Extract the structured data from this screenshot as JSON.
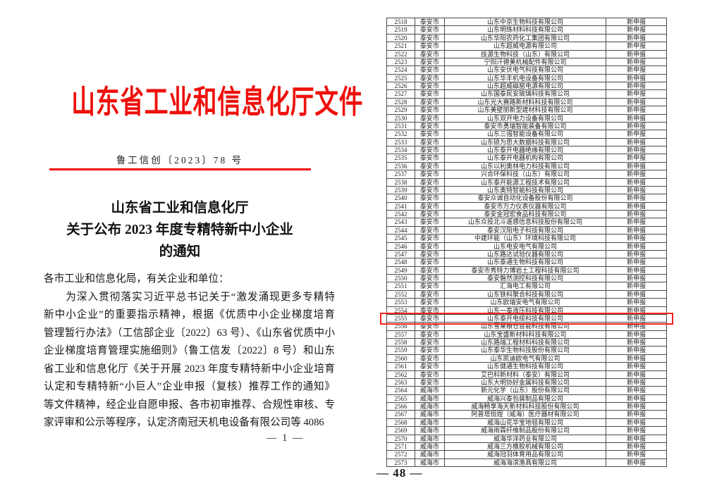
{
  "colors": {
    "red": "#ee100b",
    "highlight": "#f2231a",
    "grid": "#4a4a4a"
  },
  "notice": {
    "header_title": "山东省工业和信息化厅文件",
    "doc_number": "鲁工信创〔2023〕78 号",
    "title_lines": [
      "山东省工业和信息化厅",
      "关于公布 2023 年度专精特新中小企业",
      "的通知"
    ],
    "body_lines": [
      "各市工业和信息化局，有关企业和单位：",
      "　　为深入贯彻落实习近平总书记关于“激发涌现更多专精特",
      "新中小企业”的重要指示精神，根据《优质中小企业梯度培育",
      "管理暂行办法》（工信部企业〔2022〕63 号）、《山东省优质中小",
      "企业梯度培育管理实施细则》（鲁工信发〔2022〕8 号）和山东",
      "省工业和信息化厅《关于开展 2023 年度专精特新中小企业培育",
      "认定和专精特新“小巨人”企业申报（复核）推荐工作的通知》",
      "等文件精神，经企业自愿申报、各市初审推荐、合规性审核、专",
      "家评审和公示等程序，认定济南冠天机电设备有限公司等 4086"
    ],
    "page_number": "— 1 —"
  },
  "table": {
    "highlighted_no": "2555",
    "page_number": "— 48 —",
    "rows": [
      [
        "2518",
        "泰安市",
        "山东中京生物科技有限公司",
        "新申报"
      ],
      [
        "2519",
        "泰安市",
        "山东明珠材料科技有限公司",
        "新申报"
      ],
      [
        "2520",
        "泰安市",
        "山东华阳农药化工集团有限公司",
        "新申报"
      ],
      [
        "2521",
        "泰安市",
        "山东超威电源有限公司",
        "新申报"
      ],
      [
        "2522",
        "泰安市",
        "技源生物科技（山东）有限公司",
        "新申报"
      ],
      [
        "2523",
        "泰安市",
        "宁阳汗德美机械配件有限公司",
        "新申报"
      ],
      [
        "2524",
        "泰安市",
        "山东安伏电气科技有限公司",
        "新申报"
      ],
      [
        "2525",
        "泰安市",
        "山东华丰机电设备有限公司",
        "新申报"
      ],
      [
        "2526",
        "泰安市",
        "山东超威磁窑电源有限公司",
        "新申报"
      ],
      [
        "2527",
        "泰安市",
        "山东国泰民安玻璃科技有限公司",
        "新申报"
      ],
      [
        "2528",
        "泰安市",
        "山东光大赛路新材料科技有限公司",
        "新申报"
      ],
      [
        "2529",
        "泰安市",
        "山东美壁丽新型建材科技有限公司",
        "新申报"
      ],
      [
        "2530",
        "泰安市",
        "山东双开电力设备有限公司",
        "新申报"
      ],
      [
        "2531",
        "泰安市",
        "泰安市勇瑞智能装备有限公司",
        "新申报"
      ],
      [
        "2532",
        "泰安市",
        "山东三强智能设备有限公司",
        "新申报"
      ],
      [
        "2533",
        "泰安市",
        "山东硕为思大数据科技有限公司",
        "新申报"
      ],
      [
        "2534",
        "泰安市",
        "山东泰开电器绝缘有限公司",
        "新申报"
      ],
      [
        "2535",
        "泰安市",
        "山东泰开电器机构有限公司",
        "新申报"
      ],
      [
        "2536",
        "泰安市",
        "山东以利奥林电力科技有限公司",
        "新申报"
      ],
      [
        "2537",
        "泰安市",
        "兴合环保科技（山东）有限公司",
        "新申报"
      ],
      [
        "2538",
        "泰安市",
        "山东泰开能源工程技术有限公司",
        "新申报"
      ],
      [
        "2539",
        "泰安市",
        "山东奥特智能科技有限公司",
        "新申报"
      ],
      [
        "2540",
        "泰安市",
        "泰安众诚自动化设备股份有限公司",
        "新申报"
      ],
      [
        "2541",
        "泰安市",
        "泰安市万力仪表仪器有限公司",
        "新申报"
      ],
      [
        "2542",
        "泰安市",
        "泰安金冠宏食品科技有限公司",
        "新申报"
      ],
      [
        "2543",
        "泰安市",
        "山东众投北斗遥感信息科技股份有限公司",
        "新申报"
      ],
      [
        "2544",
        "泰安市",
        "泰安汉阳电子科技有限公司",
        "新申报"
      ],
      [
        "2545",
        "泰安市",
        "中建环能（山东）环境科技有限公司",
        "新申报"
      ],
      [
        "2546",
        "泰安市",
        "山东电安电气有限公司",
        "新申报"
      ],
      [
        "2547",
        "泰安市",
        "山东路达试验仪器有限公司",
        "新申报"
      ],
      [
        "2548",
        "泰安市",
        "山东泰通生物科技有限公司",
        "新申报"
      ],
      [
        "2549",
        "泰安市",
        "泰安市秀特力博岩土工程科技有限公司",
        "新申报"
      ],
      [
        "2550",
        "泰安市",
        "泰安磐然测控科技有限公司",
        "新申报"
      ],
      [
        "2551",
        "泰安市",
        "汇海电工有限公司",
        "新申报"
      ],
      [
        "2552",
        "泰安市",
        "山东铁科聚合科技有限公司",
        "新申报"
      ],
      [
        "2553",
        "泰安市",
        "山东欧瑞安电气有限公司",
        "新申报"
      ],
      [
        "2554",
        "泰安市",
        "山东一泰液压科技有限公司",
        "新申报"
      ],
      [
        "2555",
        "泰安市",
        "山东泰开电缆科技有限公司",
        "新申报"
      ],
      [
        "2556",
        "泰安市",
        "山东雪莱粮仓智能科技有限公司",
        "新申报"
      ],
      [
        "2557",
        "泰安市",
        "山东宝盛新材料科技有限公司",
        "新申报"
      ],
      [
        "2558",
        "泰安市",
        "山东路瑞工程材料科技有限公司",
        "新申报"
      ],
      [
        "2559",
        "泰安市",
        "山东泰华生物科技股份有限公司",
        "新申报"
      ],
      [
        "2560",
        "泰安市",
        "山东凯迪欧电气有限公司",
        "新申报"
      ],
      [
        "2561",
        "泰安市",
        "山东健通生物科技有限公司",
        "新申报"
      ],
      [
        "2562",
        "泰安市",
        "艾巴科新材料（泰安）有限公司",
        "新申报"
      ],
      [
        "2563",
        "泰安市",
        "山东大明协好金属科技有限公司",
        "新申报"
      ],
      [
        "2564",
        "威海市",
        "新元化学（山东）股份有限公司",
        "新申报"
      ],
      [
        "2565",
        "威海市",
        "威海兴泰包装制品有限公司",
        "新申报"
      ],
      [
        "2566",
        "威海市",
        "威海畅享海天新材料科技股份有限公司",
        "新申报"
      ],
      [
        "2567",
        "威海市",
        "阿普塔恒煜（威海）医疗器材有限公司",
        "新申报"
      ],
      [
        "2568",
        "威海市",
        "威海山花华宝地毯有限公司",
        "新申报"
      ],
      [
        "2569",
        "威海市",
        "威海雨霖纤维制品股份有限公司",
        "新申报"
      ],
      [
        "2570",
        "威海市",
        "威海华洋药业有限公司",
        "新申报"
      ],
      [
        "2571",
        "威海市",
        "威海三方橡胶机械有限公司",
        "新申报"
      ],
      [
        "2572",
        "威海市",
        "威海冠羽体育用品有限公司",
        "新申报"
      ],
      [
        "2573",
        "威海市",
        "威海海滨渔具有限公司",
        "新申报"
      ]
    ]
  }
}
